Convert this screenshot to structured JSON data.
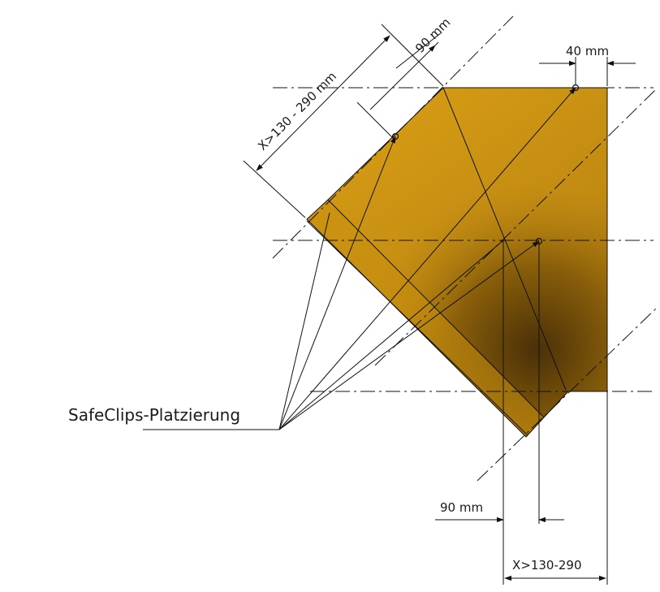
{
  "labels": {
    "dim_top_left_range": "X>130 - 290 mm",
    "dim_top_90": "90 mm",
    "dim_top_right_40": "40 mm",
    "dim_bottom_90": "90 mm",
    "dim_bottom_range": "X>130-290",
    "safeclips": "SafeClips-Platzierung"
  },
  "colors": {
    "fill_light": "#d39a16",
    "fill_mid": "#b98410",
    "fill_dark": "#4a3008",
    "line": "#111111"
  }
}
